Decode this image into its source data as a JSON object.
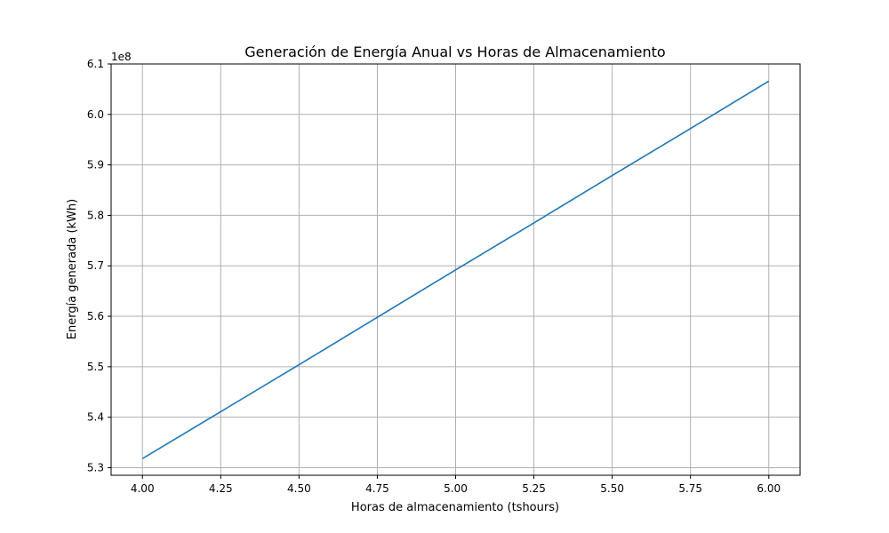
{
  "chart_data": {
    "type": "line",
    "title": "Generación de Energía Anual vs Horas de Almacenamiento",
    "xlabel": "Horas de almacenamiento (tshours)",
    "ylabel": "Energía generada (kWh)",
    "y_offset_label": "1e8",
    "xlim": [
      3.9,
      6.1
    ],
    "ylim": [
      5.285,
      6.1
    ],
    "x_ticks": [
      4.0,
      4.25,
      4.5,
      4.75,
      5.0,
      5.25,
      5.5,
      5.75,
      6.0
    ],
    "x_tick_labels": [
      "4.00",
      "4.25",
      "4.50",
      "4.75",
      "5.00",
      "5.25",
      "5.50",
      "5.75",
      "6.00"
    ],
    "y_ticks": [
      5.3,
      5.4,
      5.5,
      5.6,
      5.7,
      5.8,
      5.9,
      6.0,
      6.1
    ],
    "y_tick_labels": [
      "5.3",
      "5.4",
      "5.5",
      "5.6",
      "5.7",
      "5.8",
      "5.9",
      "6.0",
      "6.1"
    ],
    "grid": true,
    "series": [
      {
        "color": "#1f77b4",
        "x": [
          4.0,
          4.25,
          4.5,
          4.75,
          5.0,
          5.25,
          5.5,
          5.75,
          6.0
        ],
        "y": [
          5.318,
          5.411,
          5.504,
          5.598,
          5.692,
          5.785,
          5.879,
          5.972,
          6.066
        ]
      }
    ]
  }
}
